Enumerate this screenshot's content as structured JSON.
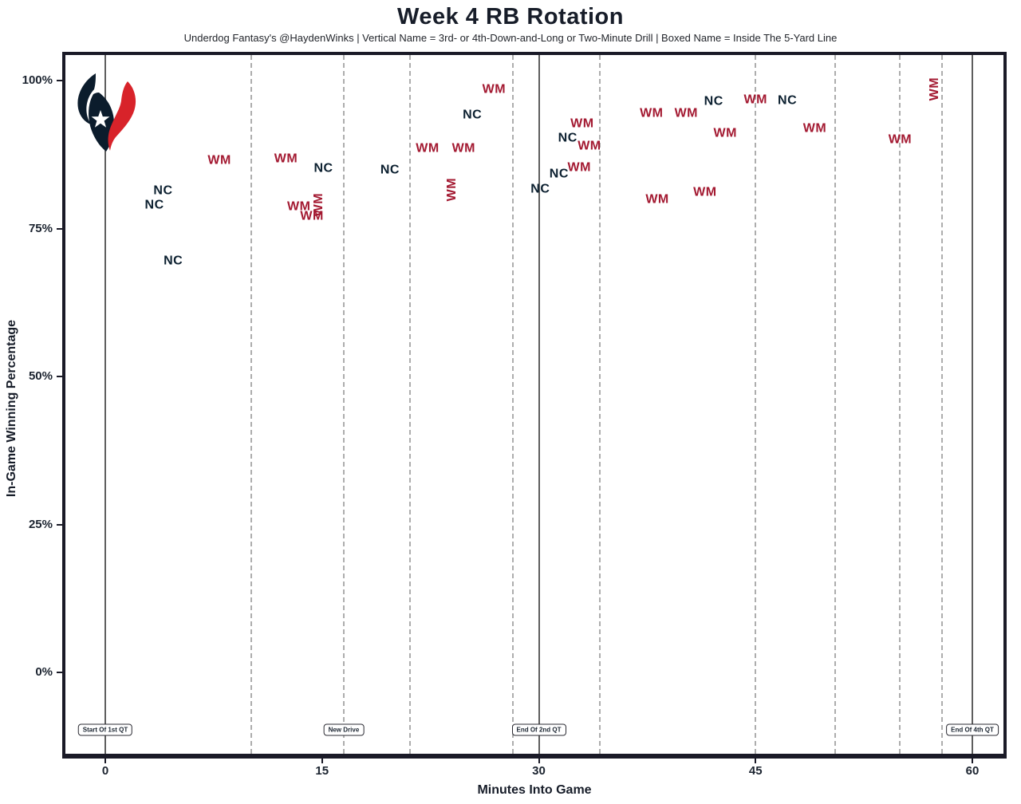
{
  "title": "Week 4 RB Rotation",
  "subtitle": "Underdog Fantasy's @HaydenWinks | Vertical Name = 3rd- or 4th-Down-and-Long or Two-Minute Drill | Boxed Name = Inside The 5-Yard Line",
  "logo": {
    "team": "Houston Texans",
    "navy": "#0b1c2c",
    "red": "#d8232a",
    "star": "#ffffff"
  },
  "colors": {
    "wm_red": "#a31931",
    "nc_navy": "#0c2030",
    "grid_dashed": "#adadad",
    "grid_solid": "#5e5e5e",
    "border": "#1a1a27",
    "text": "#171d29"
  },
  "chart_data": {
    "type": "scatter",
    "title": "Week 4 RB Rotation",
    "xlabel": "Minutes Into Game",
    "ylabel": "In-Game Winning Percentage",
    "x_ticks": [
      0,
      15,
      30,
      45,
      60
    ],
    "x_tick_labels": [
      "0",
      "15",
      "30",
      "45",
      "60"
    ],
    "y_ticks": [
      0,
      25,
      50,
      75,
      100
    ],
    "y_tick_labels": [
      "0%",
      "25%",
      "50%",
      "75%",
      "100%"
    ],
    "xlim": [
      -2.9,
      62.4
    ],
    "ylim": [
      -14.1,
      104.9
    ],
    "legend": "none",
    "grid": "vertical only; dashed lines mark new drives, solid lines mark quarter boundaries",
    "solid_vlines": [
      0,
      30,
      60
    ],
    "dashed_vlines": [
      10.1,
      16.5,
      21.1,
      28.2,
      34.2,
      45.0,
      50.5,
      55.0,
      57.9
    ],
    "annotations": [
      {
        "label": "Start Of 1st QT",
        "x": 0,
        "y_pct_center": 915
      },
      {
        "label": "New Drive",
        "x": 16.5,
        "y_pct_center": 915
      },
      {
        "label": "End Of 2nd QT",
        "x": 30,
        "y_pct_center": 915
      },
      {
        "label": "End Of 4th QT",
        "x": 60,
        "y_pct_center": 915
      }
    ],
    "series": [
      {
        "name": "NC",
        "color": "#0c2030",
        "points": [
          {
            "x": 3.4,
            "y": 78.8
          },
          {
            "x": 4.0,
            "y": 81.3
          },
          {
            "x": 4.7,
            "y": 69.4
          },
          {
            "x": 15.1,
            "y": 85.0
          },
          {
            "x": 19.7,
            "y": 84.8
          },
          {
            "x": 25.4,
            "y": 94.1
          },
          {
            "x": 30.1,
            "y": 81.5
          },
          {
            "x": 31.4,
            "y": 84.1
          },
          {
            "x": 32.0,
            "y": 90.2
          },
          {
            "x": 42.1,
            "y": 96.4
          },
          {
            "x": 47.2,
            "y": 96.5
          }
        ]
      },
      {
        "name": "WM",
        "color": "#a31931",
        "points": [
          {
            "x": 7.9,
            "y": 86.4
          },
          {
            "x": 12.5,
            "y": 86.7
          },
          {
            "x": 13.4,
            "y": 78.6
          },
          {
            "x": 14.3,
            "y": 77.0
          },
          {
            "x": 14.8,
            "y": 79.0,
            "vertical": true
          },
          {
            "x": 22.3,
            "y": 88.4
          },
          {
            "x": 24.0,
            "y": 81.5,
            "vertical": true
          },
          {
            "x": 24.8,
            "y": 88.4
          },
          {
            "x": 26.9,
            "y": 98.4
          },
          {
            "x": 32.8,
            "y": 85.2
          },
          {
            "x": 33.0,
            "y": 92.6
          },
          {
            "x": 33.5,
            "y": 88.8
          },
          {
            "x": 37.8,
            "y": 94.3
          },
          {
            "x": 38.2,
            "y": 79.8
          },
          {
            "x": 40.2,
            "y": 94.3
          },
          {
            "x": 41.5,
            "y": 81.0
          },
          {
            "x": 42.9,
            "y": 91.0
          },
          {
            "x": 45.0,
            "y": 96.6
          },
          {
            "x": 49.1,
            "y": 91.8
          },
          {
            "x": 55.0,
            "y": 89.9
          },
          {
            "x": 57.4,
            "y": 98.5,
            "vertical": true
          }
        ]
      }
    ]
  }
}
